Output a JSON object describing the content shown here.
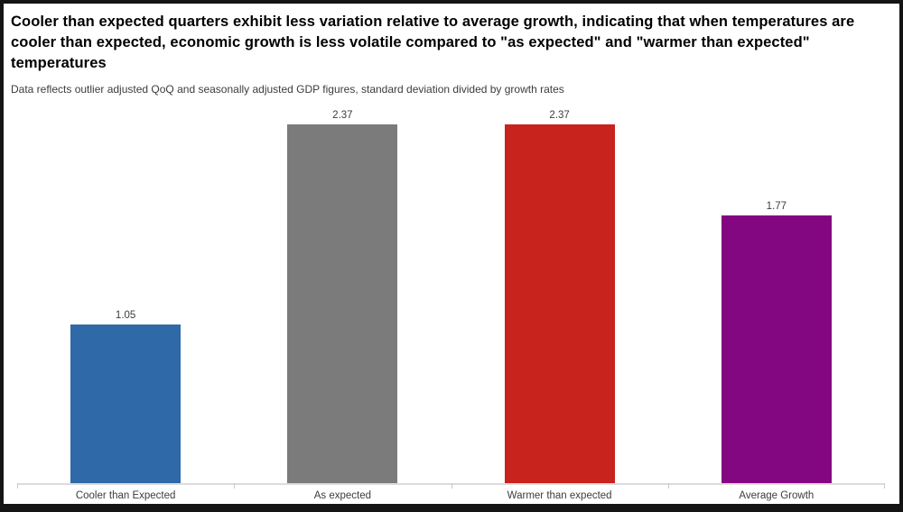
{
  "chart_data": {
    "type": "bar",
    "title": "Cooler than expected quarters exhibit less variation relative to average growth, indicating that when temperatures are cooler than expected, economic growth is less volatile compared to \"as expected\" and \"warmer than expected\" temperatures",
    "subtitle": "Data reflects outlier adjusted QoQ and seasonally adjusted GDP figures, standard deviation divided by growth rates",
    "categories": [
      "Cooler than Expected",
      "As expected",
      "Warmer than expected",
      "Average Growth"
    ],
    "values": [
      1.05,
      2.37,
      2.37,
      1.77
    ],
    "value_labels": [
      "1.05",
      "2.37",
      "2.37",
      "1.77"
    ],
    "bar_colors": [
      "#2F69A8",
      "#7B7B7B",
      "#C8231D",
      "#830781"
    ],
    "xlabel": "",
    "ylabel": "",
    "ylim": [
      0,
      2.6
    ],
    "y_axis_visible": false,
    "grid": false,
    "legend": false,
    "data_labels": true,
    "axis_line_color": "#DCDCDC",
    "label_text_color": "#3C3C3C"
  }
}
